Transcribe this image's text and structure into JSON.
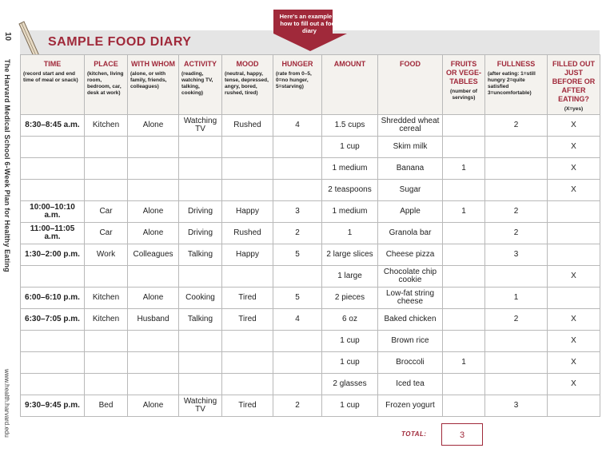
{
  "page_number": "10",
  "book_title": "The Harvard Medical School 6-Week Plan for Healthy Eating",
  "website": "www.health.harvard.edu",
  "title": "SAMPLE FOOD DIARY",
  "callout": "Here's an example of how to fill out a food diary",
  "colors": {
    "accent": "#a0293a",
    "title_bar": "#e5e5e5",
    "header_bg": "#f4f2ee"
  },
  "columns": [
    {
      "label": "TIME",
      "sub": "(record start and end time of meal or snack)"
    },
    {
      "label": "PLACE",
      "sub": "(kitchen, living room, bedroom, car, desk at work)"
    },
    {
      "label": "WITH WHOM",
      "sub": "(alone, or with family, friends, colleagues)"
    },
    {
      "label": "ACTIVITY",
      "sub": "(reading, watching TV, talking, cooking)"
    },
    {
      "label": "MOOD",
      "sub": "(neutral, happy, tense, depressed, angry, bored, rushed, tired)"
    },
    {
      "label": "HUNGER",
      "sub": "(rate from 0–5, 0=no hunger, 5=starving)"
    },
    {
      "label": "AMOUNT",
      "sub": ""
    },
    {
      "label": "FOOD",
      "sub": ""
    },
    {
      "label": "FRUITS OR VEGE-TABLES",
      "sub": "(number of servings)"
    },
    {
      "label": "FULLNESS",
      "sub": "(after eating: 1=still hungry 2=quite satisfied 3=uncomfortable)"
    },
    {
      "label": "FILLED OUT JUST BEFORE OR AFTER EATING?",
      "sub": "(X=yes)"
    }
  ],
  "rows": [
    [
      "8:30–8:45 a.m.",
      "Kitchen",
      "Alone",
      "Watching TV",
      "Rushed",
      "4",
      "1.5 cups",
      "Shredded wheat cereal",
      "",
      "2",
      "X"
    ],
    [
      "",
      "",
      "",
      "",
      "",
      "",
      "1 cup",
      "Skim milk",
      "",
      "",
      "X"
    ],
    [
      "",
      "",
      "",
      "",
      "",
      "",
      "1 medium",
      "Banana",
      "1",
      "",
      "X"
    ],
    [
      "",
      "",
      "",
      "",
      "",
      "",
      "2 teaspoons",
      "Sugar",
      "",
      "",
      "X"
    ],
    [
      "10:00–10:10 a.m.",
      "Car",
      "Alone",
      "Driving",
      "Happy",
      "3",
      "1 medium",
      "Apple",
      "1",
      "2",
      ""
    ],
    [
      "11:00–11:05 a.m.",
      "Car",
      "Alone",
      "Driving",
      "Rushed",
      "2",
      "1",
      "Granola bar",
      "",
      "2",
      ""
    ],
    [
      "1:30–2:00 p.m.",
      "Work",
      "Colleagues",
      "Talking",
      "Happy",
      "5",
      "2 large slices",
      "Cheese pizza",
      "",
      "3",
      ""
    ],
    [
      "",
      "",
      "",
      "",
      "",
      "",
      "1 large",
      "Chocolate chip cookie",
      "",
      "",
      "X"
    ],
    [
      "6:00–6:10 p.m.",
      "Kitchen",
      "Alone",
      "Cooking",
      "Tired",
      "5",
      "2 pieces",
      "Low-fat string cheese",
      "",
      "1",
      ""
    ],
    [
      "6:30–7:05 p.m.",
      "Kitchen",
      "Husband",
      "Talking",
      "Tired",
      "4",
      "6 oz",
      "Baked chicken",
      "",
      "2",
      "X"
    ],
    [
      "",
      "",
      "",
      "",
      "",
      "",
      "1 cup",
      "Brown rice",
      "",
      "",
      "X"
    ],
    [
      "",
      "",
      "",
      "",
      "",
      "",
      "1 cup",
      "Broccoli",
      "1",
      "",
      "X"
    ],
    [
      "",
      "",
      "",
      "",
      "",
      "",
      "2 glasses",
      "Iced tea",
      "",
      "",
      "X"
    ],
    [
      "9:30–9:45 p.m.",
      "Bed",
      "Alone",
      "Watching TV",
      "Tired",
      "2",
      "1 cup",
      "Frozen yogurt",
      "",
      "3",
      ""
    ]
  ],
  "total_label": "TOTAL:",
  "total_value": "3"
}
